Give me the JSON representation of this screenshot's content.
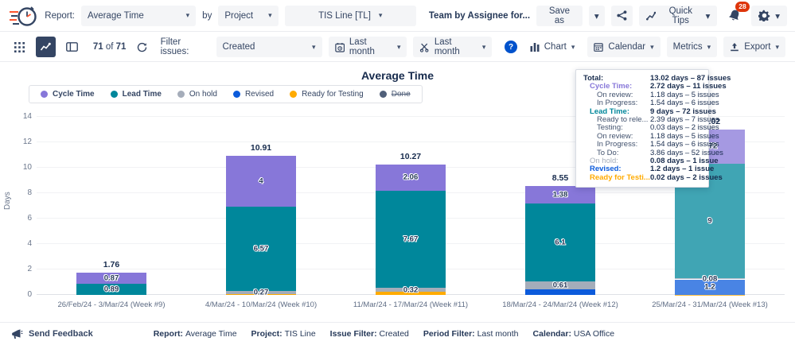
{
  "header": {
    "report_label": "Report:",
    "report_value": "Average Time",
    "by_label": "by",
    "group_value": "Project",
    "project_value": "TIS Line [TL]",
    "saved_report": "Team by Assignee for...",
    "save_as_label": "Save as",
    "quick_tips_label": "Quick Tips",
    "notification_count": "28"
  },
  "toolbar": {
    "count_current": "71",
    "count_of": "of",
    "count_total": "71",
    "filter_label": "Filter issues:",
    "filter_value": "Created",
    "period_calendar_value": "Last month",
    "period_work_value": "Last month",
    "help_label": "?",
    "chart_label": "Chart",
    "calendar_label": "Calendar",
    "metrics_label": "Metrics",
    "export_label": "Export"
  },
  "chart": {
    "title": "Average Time",
    "ylabel": "Days",
    "legend": [
      {
        "label": "Cycle Time",
        "color": "#8777D9",
        "bold": true,
        "struck": false
      },
      {
        "label": "Lead Time",
        "color": "#00879B",
        "bold": true,
        "struck": false
      },
      {
        "label": "On hold",
        "color": "#A5ADBA",
        "bold": false,
        "struck": false
      },
      {
        "label": "Revised",
        "color": "#0C5BDB",
        "bold": false,
        "struck": false
      },
      {
        "label": "Ready for Testing",
        "color": "#FFAB00",
        "bold": false,
        "struck": false
      },
      {
        "label": "Done",
        "color": "#505F79",
        "bold": false,
        "struck": true
      }
    ]
  },
  "chart_data": {
    "type": "stacked-bar",
    "title": "Average Time",
    "xlabel": "",
    "ylabel": "Days",
    "ylim": [
      0,
      14
    ],
    "yticks": [
      0,
      2,
      4,
      6,
      8,
      10,
      12,
      14
    ],
    "grid": true,
    "legend_position": "top-left",
    "categories": [
      "26/Feb/24 - 3/Mar/24 (Week #9)",
      "4/Mar/24 - 10/Mar/24 (Week #10)",
      "11/Mar/24 - 17/Mar/24 (Week #11)",
      "18/Mar/24 - 24/Mar/24 (Week #12)",
      "25/Mar/24 - 31/Mar/24 (Week #13)"
    ],
    "series": [
      {
        "name": "Cycle Time",
        "color": "#8777D9",
        "values": [
          0.87,
          4,
          2.06,
          1.38,
          2.72
        ],
        "labels": [
          "0.87",
          "4",
          "2.06",
          "1.38",
          "2.72"
        ]
      },
      {
        "name": "Lead Time",
        "color": "#00879B",
        "values": [
          0.89,
          6.57,
          7.67,
          6.1,
          9
        ],
        "labels": [
          "0.89",
          "6.57",
          "7.67",
          "6.1",
          "9"
        ]
      },
      {
        "name": "On hold",
        "color": "#A5ADBA",
        "values": [
          0,
          0.27,
          0.32,
          0.61,
          0.08
        ],
        "labels": [
          "",
          "0.27",
          "0.32",
          "0.61",
          "0.08"
        ]
      },
      {
        "name": "Revised",
        "color": "#0C5BDB",
        "values": [
          0,
          0,
          0,
          0.46,
          1.2
        ],
        "labels": [
          "",
          "",
          "",
          "",
          "1.2"
        ]
      },
      {
        "name": "Ready for Testing",
        "color": "#FFAB00",
        "values": [
          0,
          0.07,
          0.22,
          0,
          0.02
        ],
        "labels": [
          "",
          "",
          "",
          "",
          ""
        ]
      }
    ],
    "totals": [
      "1.76",
      "10.91",
      "10.27",
      "8.55",
      "13.02"
    ],
    "hover_index": 4
  },
  "tooltip": {
    "rows": [
      {
        "label": "Total:",
        "value": "13.02 days – 87 issues",
        "indent": 0,
        "color": "#172B4D",
        "label_bold": true,
        "value_bold": true
      },
      {
        "label": "Cycle Time:",
        "value": "2.72 days – 11 issues",
        "indent": 1,
        "color": "#8777D9",
        "label_bold": true,
        "value_bold": true
      },
      {
        "label": "On review:",
        "value": "1.18 days – 5 issues",
        "indent": 2,
        "color": "#42526E",
        "label_bold": false,
        "value_bold": false
      },
      {
        "label": "In Progress:",
        "value": "1.54 days – 6 issues",
        "indent": 2,
        "color": "#42526E",
        "label_bold": false,
        "value_bold": false
      },
      {
        "label": "Lead Time:",
        "value": "9 days – 72 issues",
        "indent": 1,
        "color": "#00879B",
        "label_bold": true,
        "value_bold": true
      },
      {
        "label": "Ready to rele...",
        "value": "2.39 days – 7 issues",
        "indent": 2,
        "color": "#42526E",
        "label_bold": false,
        "value_bold": false
      },
      {
        "label": "Testing:",
        "value": "0.03 days – 2 issues",
        "indent": 2,
        "color": "#42526E",
        "label_bold": false,
        "value_bold": false
      },
      {
        "label": "On review:",
        "value": "1.18 days – 5 issues",
        "indent": 2,
        "color": "#42526E",
        "label_bold": false,
        "value_bold": false
      },
      {
        "label": "In Progress:",
        "value": "1.54 days – 6 issues",
        "indent": 2,
        "color": "#42526E",
        "label_bold": false,
        "value_bold": false
      },
      {
        "label": "To Do:",
        "value": "3.86 days – 52 issues",
        "indent": 2,
        "color": "#42526E",
        "label_bold": false,
        "value_bold": false
      },
      {
        "label": "On hold:",
        "value": "0.08 days – 1 issue",
        "indent": 1,
        "color": "#A5ADBA",
        "label_bold": false,
        "value_bold": true
      },
      {
        "label": "Revised:",
        "value": "1.2 days – 1 issue",
        "indent": 1,
        "color": "#0C5BDB",
        "label_bold": true,
        "value_bold": true
      },
      {
        "label": "Ready for Testi...",
        "value": "0.02 days – 2 issues",
        "indent": 1,
        "color": "#FFAB00",
        "label_bold": true,
        "value_bold": true
      }
    ]
  },
  "footer": {
    "feedback_label": "Send Feedback",
    "pairs": [
      {
        "key": "Report:",
        "value": "Average Time"
      },
      {
        "key": "Project:",
        "value": "TIS Line"
      },
      {
        "key": "Issue Filter:",
        "value": "Created"
      },
      {
        "key": "Period Filter:",
        "value": "Last month"
      },
      {
        "key": "Calendar:",
        "value": "USA Office"
      }
    ]
  },
  "icons": {
    "logo": "stopwatch-with-speed-lines",
    "chevron-down": "▾",
    "share": "share-nodes",
    "bell": "notification-bell",
    "gear": "settings-gear",
    "grid": "grid-3x3-dots",
    "chart-line": "line-chart",
    "board": "board-panel",
    "refresh": "refresh-arrows",
    "calendar": "calendar",
    "scissors": "scissors",
    "bar-chart": "bar-chart",
    "export": "export-upload",
    "megaphone": "megaphone"
  },
  "colors": {
    "accent_blue": "#0052CC",
    "badge_red": "#DE350B",
    "selected_nav": "#344563",
    "text_navy": "#172B4D",
    "muted": "#6B778C",
    "button_bg": "#F4F5F7",
    "border": "#EBECF0"
  }
}
